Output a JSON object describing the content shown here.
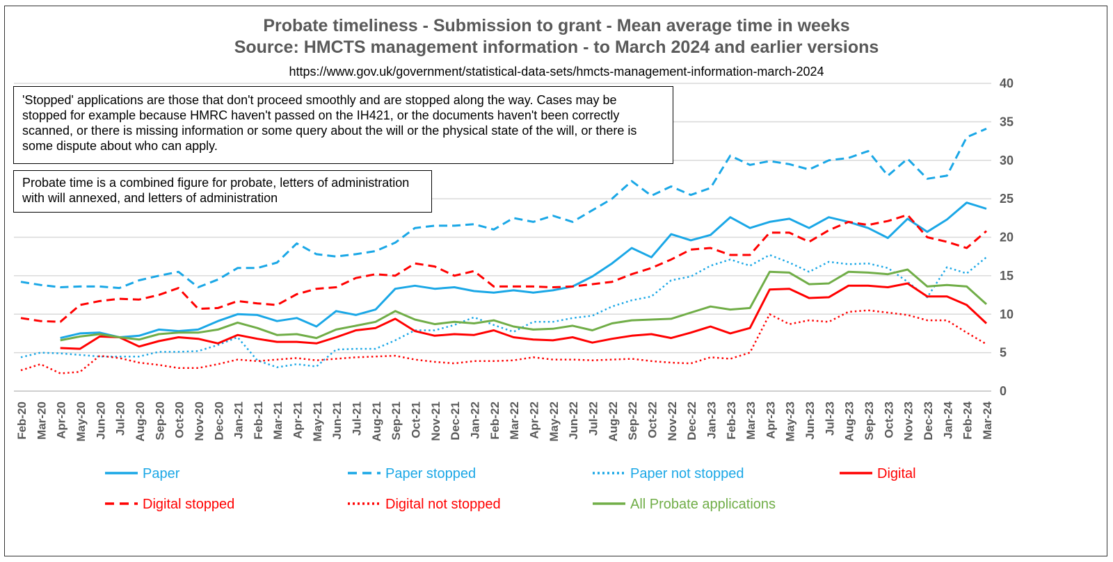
{
  "titles": {
    "line1": "Probate timeliness - Submission to grant - Mean average time in weeks",
    "line2": "Source: HMCTS management information - to March 2024 and earlier versions",
    "line3": "https://www.gov.uk/government/statistical-data-sets/hmcts-management-information-march-2024"
  },
  "notes": {
    "stopped": "'Stopped' applications are those that don't proceed smoothly and are stopped along the way. Cases may be stopped for example because HMRC haven't passed on the IH421, or the documents haven't been correctly scanned, or there is missing information or some query about the will or the physical state of the will, or there is some dispute about who can apply.",
    "probate_time": "Probate time is a combined figure for probate, letters of administration with will annexed, and letters of administration"
  },
  "chart_data": {
    "type": "line",
    "title": "Probate timeliness - Submission to grant - Mean average time in weeks",
    "xlabel": "",
    "ylabel": "",
    "ylim": [
      0,
      40
    ],
    "yticks": [
      0,
      5,
      10,
      15,
      20,
      25,
      30,
      35,
      40
    ],
    "y_axis_side": "right",
    "grid": true,
    "legend_position": "bottom",
    "categories": [
      "Feb-20",
      "Mar-20",
      "Apr-20",
      "May-20",
      "Jun-20",
      "Jul-20",
      "Aug-20",
      "Sep-20",
      "Oct-20",
      "Nov-20",
      "Dec-20",
      "Jan-21",
      "Feb-21",
      "Mar-21",
      "Apr-21",
      "May-21",
      "Jun-21",
      "Jul-21",
      "Aug-21",
      "Sep-21",
      "Oct-21",
      "Nov-21",
      "Dec-21",
      "Jan-22",
      "Feb-22",
      "Mar-22",
      "Apr-22",
      "May-22",
      "Jun-22",
      "Jul-22",
      "Aug-22",
      "Sep-22",
      "Oct-22",
      "Nov-22",
      "Dec-22",
      "Jan-23",
      "Feb-23",
      "Mar-23",
      "Apr-23",
      "May-23",
      "Jun-23",
      "Jul-23",
      "Aug-23",
      "Sep-23",
      "Oct-23",
      "Nov-23",
      "Dec-23",
      "Jan-24",
      "Feb-24",
      "Mar-24"
    ],
    "series": [
      {
        "name": "Paper",
        "color": "#1aa7e6",
        "dash": "solid",
        "values": [
          null,
          null,
          6.9,
          7.5,
          7.6,
          7.0,
          7.2,
          8.0,
          7.8,
          8.0,
          9.1,
          10.0,
          9.9,
          9.1,
          9.5,
          8.4,
          10.4,
          9.9,
          10.6,
          13.3,
          13.7,
          13.3,
          13.5,
          13.0,
          12.8,
          13.1,
          12.8,
          13.1,
          13.6,
          14.9,
          16.6,
          18.6,
          17.4,
          20.4,
          19.6,
          20.3,
          22.6,
          21.2,
          22.0,
          22.4,
          21.2,
          22.6,
          22.0,
          21.2,
          19.9,
          22.4,
          20.7,
          22.3,
          24.5,
          23.7
        ]
      },
      {
        "name": "Paper stopped",
        "color": "#1aa7e6",
        "dash": "dashed",
        "values": [
          14.2,
          13.8,
          13.5,
          13.6,
          13.6,
          13.4,
          14.4,
          15.0,
          15.5,
          13.5,
          14.5,
          16.0,
          16.0,
          16.7,
          19.2,
          17.8,
          17.5,
          17.8,
          18.2,
          19.3,
          21.2,
          21.5,
          21.5,
          21.7,
          21.0,
          22.5,
          22.0,
          22.8,
          22.0,
          23.5,
          25.0,
          27.3,
          25.4,
          26.6,
          25.5,
          26.4,
          30.6,
          29.4,
          29.9,
          29.5,
          28.8,
          30.0,
          30.3,
          31.2,
          28.0,
          30.2,
          27.6,
          28.0,
          33.0,
          34.1
        ]
      },
      {
        "name": "Paper not stopped",
        "color": "#1aa7e6",
        "dash": "dotted",
        "values": [
          4.4,
          5.0,
          4.9,
          4.7,
          4.5,
          4.5,
          4.5,
          5.1,
          5.1,
          5.2,
          6.0,
          7.0,
          4.0,
          3.1,
          3.5,
          3.2,
          5.4,
          5.5,
          5.5,
          6.6,
          7.9,
          7.9,
          8.6,
          9.6,
          8.6,
          7.7,
          9.0,
          9.0,
          9.5,
          9.8,
          11.0,
          11.8,
          12.3,
          14.4,
          14.9,
          16.3,
          17.1,
          16.3,
          17.7,
          16.7,
          15.5,
          16.8,
          16.5,
          16.6,
          16.0,
          14.2,
          12.2,
          16.1,
          15.3,
          17.4
        ]
      },
      {
        "name": "Digital",
        "color": "#ff0000",
        "dash": "solid",
        "values": [
          null,
          null,
          5.6,
          5.5,
          7.1,
          7.0,
          5.8,
          6.5,
          7.0,
          6.8,
          6.2,
          7.3,
          6.8,
          6.4,
          6.4,
          6.2,
          7.0,
          7.9,
          8.2,
          9.4,
          7.8,
          7.2,
          7.4,
          7.3,
          7.9,
          7.0,
          6.7,
          6.6,
          7.0,
          6.3,
          6.8,
          7.2,
          7.4,
          6.9,
          7.6,
          8.4,
          7.5,
          8.2,
          13.2,
          13.3,
          12.1,
          12.2,
          13.7,
          13.7,
          13.5,
          14.0,
          12.3,
          12.3,
          11.2,
          8.8
        ]
      },
      {
        "name": "Digital stopped",
        "color": "#ff0000",
        "dash": "dashed",
        "values": [
          9.5,
          9.1,
          9.0,
          11.2,
          11.7,
          12.0,
          11.9,
          12.5,
          13.4,
          10.7,
          10.8,
          11.7,
          11.4,
          11.2,
          12.6,
          13.3,
          13.5,
          14.7,
          15.2,
          15.0,
          16.6,
          16.2,
          15.0,
          15.6,
          13.6,
          13.6,
          13.6,
          13.5,
          13.6,
          13.9,
          14.2,
          15.2,
          16.0,
          17.1,
          18.4,
          18.6,
          17.7,
          17.7,
          20.6,
          20.6,
          19.4,
          20.9,
          22.0,
          21.6,
          22.1,
          22.9,
          20.0,
          19.4,
          18.6,
          20.8
        ]
      },
      {
        "name": "Digital not stopped",
        "color": "#ff0000",
        "dash": "dotted",
        "values": [
          2.7,
          3.5,
          2.3,
          2.5,
          4.6,
          4.3,
          3.7,
          3.4,
          3.0,
          3.0,
          3.5,
          4.1,
          3.9,
          4.1,
          4.3,
          4.0,
          4.2,
          4.4,
          4.5,
          4.6,
          4.1,
          3.8,
          3.6,
          3.9,
          3.9,
          4.0,
          4.4,
          4.1,
          4.1,
          4.0,
          4.1,
          4.2,
          3.9,
          3.7,
          3.6,
          4.4,
          4.2,
          5.0,
          10.0,
          8.7,
          9.2,
          9.0,
          10.3,
          10.5,
          10.2,
          9.9,
          9.2,
          9.2,
          7.6,
          6.1
        ]
      },
      {
        "name": "All Probate applications",
        "color": "#70ad47",
        "dash": "solid",
        "values": [
          null,
          null,
          6.6,
          7.1,
          7.4,
          7.0,
          6.7,
          7.4,
          7.6,
          7.6,
          8.0,
          8.9,
          8.2,
          7.3,
          7.4,
          6.9,
          8.0,
          8.5,
          9.0,
          10.4,
          9.3,
          8.7,
          9.0,
          8.8,
          9.2,
          8.4,
          8.0,
          8.1,
          8.5,
          7.9,
          8.8,
          9.2,
          9.3,
          9.4,
          10.2,
          11.0,
          10.6,
          10.8,
          15.5,
          15.4,
          13.9,
          14.0,
          15.5,
          15.4,
          15.2,
          15.8,
          13.6,
          13.8,
          13.6,
          11.3
        ]
      }
    ]
  }
}
